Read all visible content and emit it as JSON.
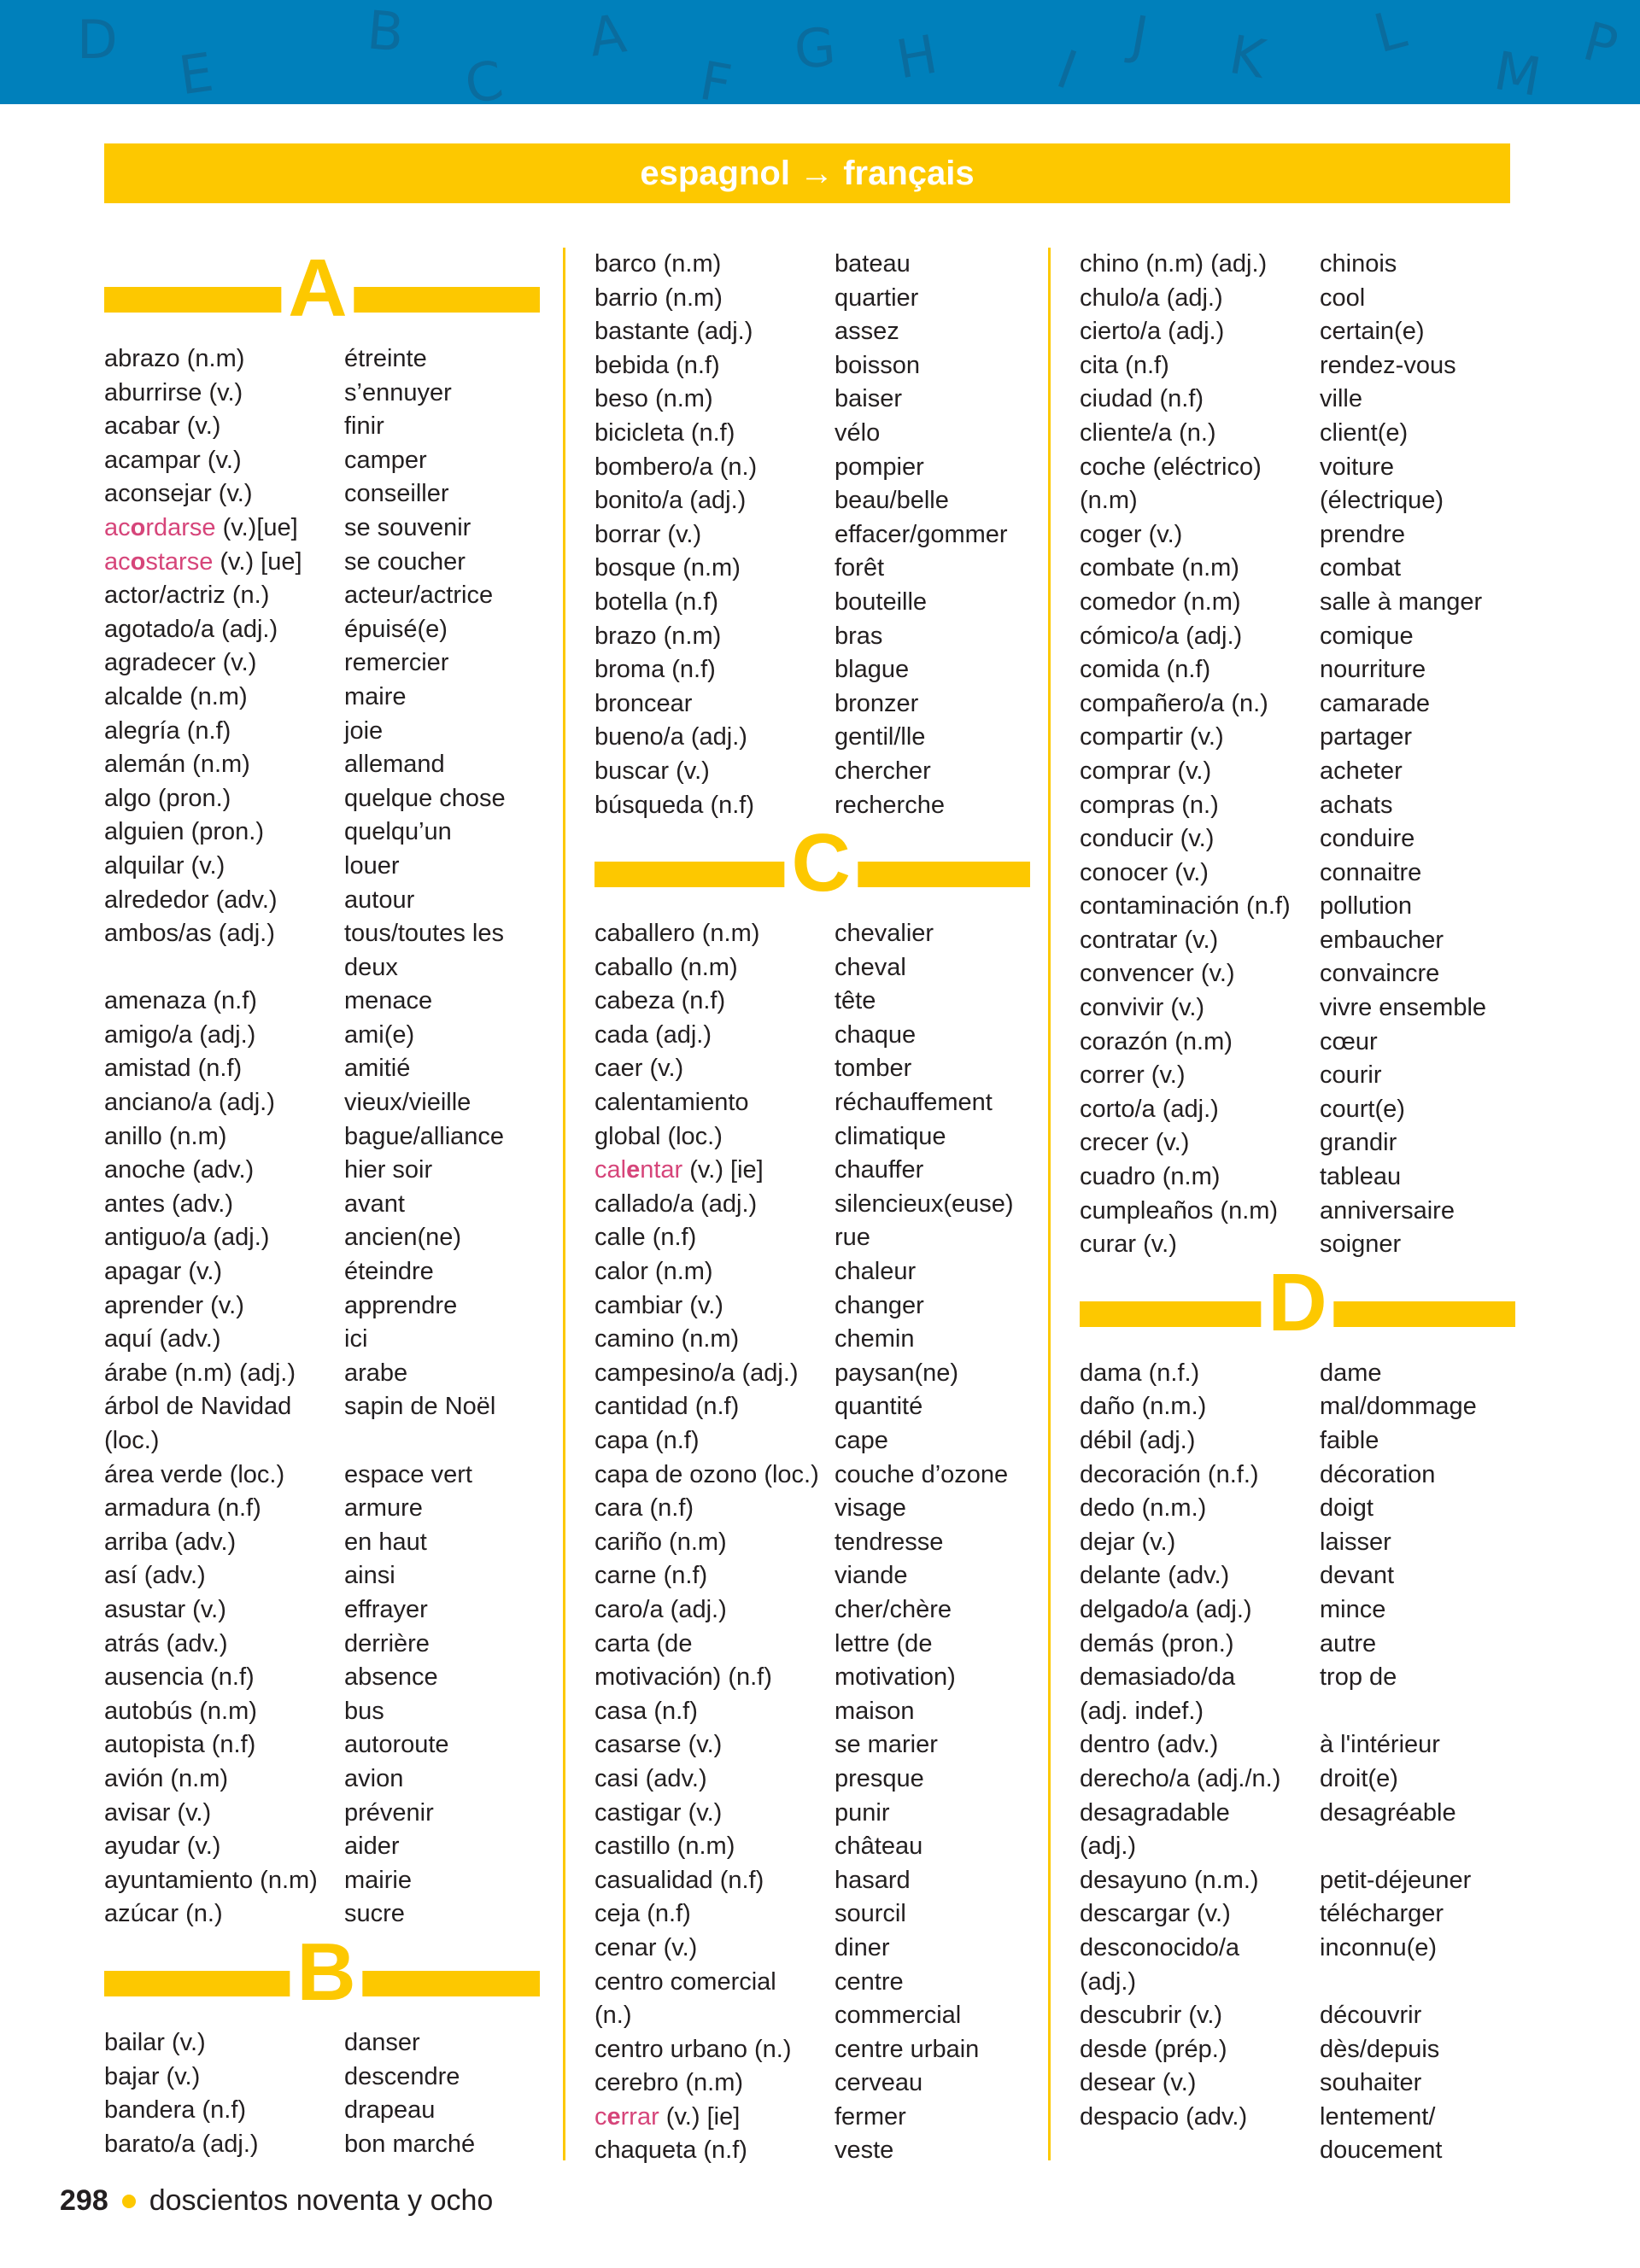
{
  "header": {
    "letters": [
      "D",
      "E",
      "B",
      "C",
      "A",
      "F",
      "G",
      "H",
      "I",
      "J",
      "K",
      "L",
      "M",
      "P"
    ],
    "title": "espagnol → français"
  },
  "colors": {
    "accent": "#fdc800",
    "band": "#0080bb",
    "highlight": "#d6457a",
    "text": "#231f20"
  },
  "columns": [
    [
      {
        "section": "A"
      },
      {
        "es": "abrazo (n.m)",
        "fr": "étreinte"
      },
      {
        "es": "aburrirse (v.)",
        "fr": "s’ennuyer"
      },
      {
        "es": "acabar (v.)",
        "fr": "finir"
      },
      {
        "es": "acampar (v.)",
        "fr": "camper"
      },
      {
        "es": "aconsejar (v.)",
        "fr": "conseiller"
      },
      {
        "hl": [
          "ac",
          "o",
          "rdarse"
        ],
        "es": " (v.)[ue]",
        "fr": "se souvenir"
      },
      {
        "hl": [
          "ac",
          "o",
          "starse"
        ],
        "es": " (v.) [ue]",
        "fr": "se coucher"
      },
      {
        "es": "actor/actriz (n.)",
        "fr": "acteur/actrice"
      },
      {
        "es": "agotado/a (adj.)",
        "fr": "épuisé(e)"
      },
      {
        "es": "agradecer (v.)",
        "fr": "remercier"
      },
      {
        "es": "alcalde (n.m)",
        "fr": "maire"
      },
      {
        "es": "alegría (n.f)",
        "fr": "joie"
      },
      {
        "es": "alemán (n.m)",
        "fr": "allemand"
      },
      {
        "es": "algo (pron.)",
        "fr": "quelque chose"
      },
      {
        "es": "alguien (pron.)",
        "fr": "quelqu’un"
      },
      {
        "es": "alquilar (v.)",
        "fr": "louer"
      },
      {
        "es": "alrededor (adv.)",
        "fr": "autour"
      },
      {
        "es": "ambos/as (adj.)",
        "fr": "tous/toutes les\ndeux"
      },
      {
        "es": "amenaza (n.f)",
        "fr": "menace"
      },
      {
        "es": "amigo/a (adj.)",
        "fr": "ami(e)"
      },
      {
        "es": "amistad (n.f)",
        "fr": "amitié"
      },
      {
        "es": "anciano/a (adj.)",
        "fr": "vieux/vieille"
      },
      {
        "es": "anillo (n.m)",
        "fr": "bague/alliance"
      },
      {
        "es": "anoche (adv.)",
        "fr": "hier soir"
      },
      {
        "es": "antes (adv.)",
        "fr": "avant"
      },
      {
        "es": "antiguo/a (adj.)",
        "fr": "ancien(ne)"
      },
      {
        "es": "apagar (v.)",
        "fr": "éteindre"
      },
      {
        "es": "aprender (v.)",
        "fr": "apprendre"
      },
      {
        "es": "aquí (adv.)",
        "fr": "ici"
      },
      {
        "es": "árabe (n.m) (adj.)",
        "fr": "arabe"
      },
      {
        "es": "árbol de Navidad\n(loc.)",
        "fr": "sapin de Noël"
      },
      {
        "es": "área verde (loc.)",
        "fr": "espace vert"
      },
      {
        "es": "armadura (n.f)",
        "fr": "armure"
      },
      {
        "es": "arriba (adv.)",
        "fr": "en haut"
      },
      {
        "es": "así (adv.)",
        "fr": "ainsi"
      },
      {
        "es": "asustar (v.)",
        "fr": "effrayer"
      },
      {
        "es": "atrás (adv.)",
        "fr": "derrière"
      },
      {
        "es": "ausencia (n.f)",
        "fr": "absence"
      },
      {
        "es": "autobús (n.m)",
        "fr": "bus"
      },
      {
        "es": "autopista (n.f)",
        "fr": "autoroute"
      },
      {
        "es": "avión (n.m)",
        "fr": "avion"
      },
      {
        "es": "avisar (v.)",
        "fr": "prévenir"
      },
      {
        "es": "ayudar (v.)",
        "fr": "aider"
      },
      {
        "es": "ayuntamiento (n.m)",
        "fr": "mairie"
      },
      {
        "es": "azúcar (n.)",
        "fr": "sucre"
      },
      {
        "section": "B"
      },
      {
        "es": "bailar (v.)",
        "fr": "danser"
      },
      {
        "es": "bajar (v.)",
        "fr": "descendre"
      },
      {
        "es": "bandera (n.f)",
        "fr": "drapeau"
      },
      {
        "es": "barato/a (adj.)",
        "fr": "bon marché"
      }
    ],
    [
      {
        "es": "barco (n.m)",
        "fr": "bateau"
      },
      {
        "es": "barrio (n.m)",
        "fr": "quartier"
      },
      {
        "es": "bastante (adj.)",
        "fr": "assez"
      },
      {
        "es": "bebida (n.f)",
        "fr": "boisson"
      },
      {
        "es": "beso (n.m)",
        "fr": "baiser"
      },
      {
        "es": "bicicleta (n.f)",
        "fr": "vélo"
      },
      {
        "es": "bombero/a (n.)",
        "fr": "pompier"
      },
      {
        "es": "bonito/a (adj.)",
        "fr": "beau/belle"
      },
      {
        "es": "borrar (v.)",
        "fr": "effacer/gommer"
      },
      {
        "es": "bosque (n.m)",
        "fr": "forêt"
      },
      {
        "es": "botella (n.f)",
        "fr": "bouteille"
      },
      {
        "es": "brazo (n.m)",
        "fr": "bras"
      },
      {
        "es": "broma (n.f)",
        "fr": "blague"
      },
      {
        "es": "broncear",
        "fr": "bronzer"
      },
      {
        "es": "bueno/a (adj.)",
        "fr": "gentil/lle"
      },
      {
        "es": "buscar (v.)",
        "fr": "chercher"
      },
      {
        "es": "búsqueda (n.f)",
        "fr": "recherche"
      },
      {
        "section": "C"
      },
      {
        "es": "caballero (n.m)",
        "fr": "chevalier"
      },
      {
        "es": "caballo (n.m)",
        "fr": "cheval"
      },
      {
        "es": "cabeza (n.f)",
        "fr": "tête"
      },
      {
        "es": "cada (adj.)",
        "fr": "chaque"
      },
      {
        "es": "caer (v.)",
        "fr": "tomber"
      },
      {
        "es": "calentamiento\nglobal (loc.)",
        "fr": "réchauffement\nclimatique"
      },
      {
        "hl": [
          "cal",
          "e",
          "ntar"
        ],
        "es": " (v.) [ie]",
        "fr": "chauffer"
      },
      {
        "es": "callado/a (adj.)",
        "fr": "silencieux(euse)"
      },
      {
        "es": "calle (n.f)",
        "fr": "rue"
      },
      {
        "es": "calor (n.m)",
        "fr": "chaleur"
      },
      {
        "es": "cambiar (v.)",
        "fr": "changer"
      },
      {
        "es": "camino (n.m)",
        "fr": "chemin"
      },
      {
        "es": "campesino/a (adj.)",
        "fr": "paysan(ne)"
      },
      {
        "es": "cantidad (n.f)",
        "fr": "quantité"
      },
      {
        "es": "capa (n.f)",
        "fr": "cape"
      },
      {
        "es": "capa de ozono (loc.)",
        "fr": "couche d’ozone"
      },
      {
        "es": "cara (n.f)",
        "fr": "visage"
      },
      {
        "es": "cariño (n.m)",
        "fr": "tendresse"
      },
      {
        "es": "carne (n.f)",
        "fr": "viande"
      },
      {
        "es": "caro/a (adj.)",
        "fr": "cher/chère"
      },
      {
        "es": "carta (de\nmotivación) (n.f)",
        "fr": "lettre (de\nmotivation)"
      },
      {
        "es": "casa (n.f)",
        "fr": "maison"
      },
      {
        "es": "casarse (v.)",
        "fr": "se marier"
      },
      {
        "es": "casi (adv.)",
        "fr": "presque"
      },
      {
        "es": "castigar (v.)",
        "fr": "punir"
      },
      {
        "es": "castillo (n.m)",
        "fr": "château"
      },
      {
        "es": "casualidad (n.f)",
        "fr": "hasard"
      },
      {
        "es": "ceja (n.f)",
        "fr": "sourcil"
      },
      {
        "es": "cenar (v.)",
        "fr": "diner"
      },
      {
        "es": "centro comercial\n(n.)",
        "fr": "centre\ncommercial"
      },
      {
        "es": "centro urbano (n.)",
        "fr": "centre urbain"
      },
      {
        "es": "cerebro (n.m)",
        "fr": "cerveau"
      },
      {
        "hl": [
          "c",
          "e",
          "rrar"
        ],
        "es": " (v.) [ie]",
        "fr": "fermer"
      },
      {
        "es": "chaqueta (n.f)",
        "fr": "veste"
      }
    ],
    [
      {
        "es": "chino (n.m) (adj.)",
        "fr": "chinois"
      },
      {
        "es": "chulo/a (adj.)",
        "fr": "cool"
      },
      {
        "es": "cierto/a (adj.)",
        "fr": "certain(e)"
      },
      {
        "es": "cita (n.f)",
        "fr": "rendez-vous"
      },
      {
        "es": "ciudad (n.f)",
        "fr": "ville"
      },
      {
        "es": "cliente/a (n.)",
        "fr": "client(e)"
      },
      {
        "es": "coche (eléctrico)\n(n.m)",
        "fr": "voiture\n(électrique)"
      },
      {
        "es": "coger (v.)",
        "fr": "prendre"
      },
      {
        "es": "combate (n.m)",
        "fr": "combat"
      },
      {
        "es": "comedor (n.m)",
        "fr": "salle à manger"
      },
      {
        "es": "cómico/a (adj.)",
        "fr": "comique"
      },
      {
        "es": "comida (n.f)",
        "fr": "nourriture"
      },
      {
        "es": "compañero/a (n.)",
        "fr": "camarade"
      },
      {
        "es": "compartir (v.)",
        "fr": "partager"
      },
      {
        "es": "comprar (v.)",
        "fr": "acheter"
      },
      {
        "es": "compras (n.)",
        "fr": "achats"
      },
      {
        "es": "conducir (v.)",
        "fr": "conduire"
      },
      {
        "es": "conocer (v.)",
        "fr": "connaitre"
      },
      {
        "es": "contaminación (n.f)",
        "fr": "pollution"
      },
      {
        "es": "contratar (v.)",
        "fr": "embaucher"
      },
      {
        "es": "convencer (v.)",
        "fr": "convaincre"
      },
      {
        "es": "convivir (v.)",
        "fr": "vivre ensemble"
      },
      {
        "es": "corazón (n.m)",
        "fr": "cœur"
      },
      {
        "es": "correr (v.)",
        "fr": "courir"
      },
      {
        "es": "corto/a (adj.)",
        "fr": "court(e)"
      },
      {
        "es": "crecer (v.)",
        "fr": "grandir"
      },
      {
        "es": "cuadro (n.m)",
        "fr": "tableau"
      },
      {
        "es": "cumpleaños (n.m)",
        "fr": "anniversaire"
      },
      {
        "es": "curar (v.)",
        "fr": "soigner"
      },
      {
        "section": "D"
      },
      {
        "es": "dama (n.f.)",
        "fr": "dame"
      },
      {
        "es": "daño (n.m.)",
        "fr": "mal/dommage"
      },
      {
        "es": "débil (adj.)",
        "fr": "faible"
      },
      {
        "es": "decoración (n.f.)",
        "fr": "décoration"
      },
      {
        "es": "dedo (n.m.)",
        "fr": "doigt"
      },
      {
        "es": "dejar (v.)",
        "fr": "laisser"
      },
      {
        "es": "delante (adv.)",
        "fr": "devant"
      },
      {
        "es": "delgado/a (adj.)",
        "fr": "mince"
      },
      {
        "es": "demás (pron.)",
        "fr": "autre"
      },
      {
        "es": "demasiado/da\n(adj. indef.)",
        "fr": "trop de"
      },
      {
        "es": "dentro (adv.)",
        "fr": "à l'intérieur"
      },
      {
        "es": "derecho/a (adj./n.)",
        "fr": "droit(e)"
      },
      {
        "es": "desagradable\n(adj.)",
        "fr": "desagréable"
      },
      {
        "es": "desayuno (n.m.)",
        "fr": "petit-déjeuner"
      },
      {
        "es": "descargar (v.)",
        "fr": "télécharger"
      },
      {
        "es": "desconocido/a\n(adj.)",
        "fr": "inconnu(e)"
      },
      {
        "es": "descubrir (v.)",
        "fr": "découvrir"
      },
      {
        "es": "desde (prép.)",
        "fr": "dès/depuis"
      },
      {
        "es": "desear (v.)",
        "fr": "souhaiter"
      },
      {
        "es": "despacio (adv.)",
        "fr": "lentement/\ndoucement"
      }
    ]
  ],
  "footer": {
    "page_number": "298",
    "page_words": "doscientos noventa y ocho"
  }
}
